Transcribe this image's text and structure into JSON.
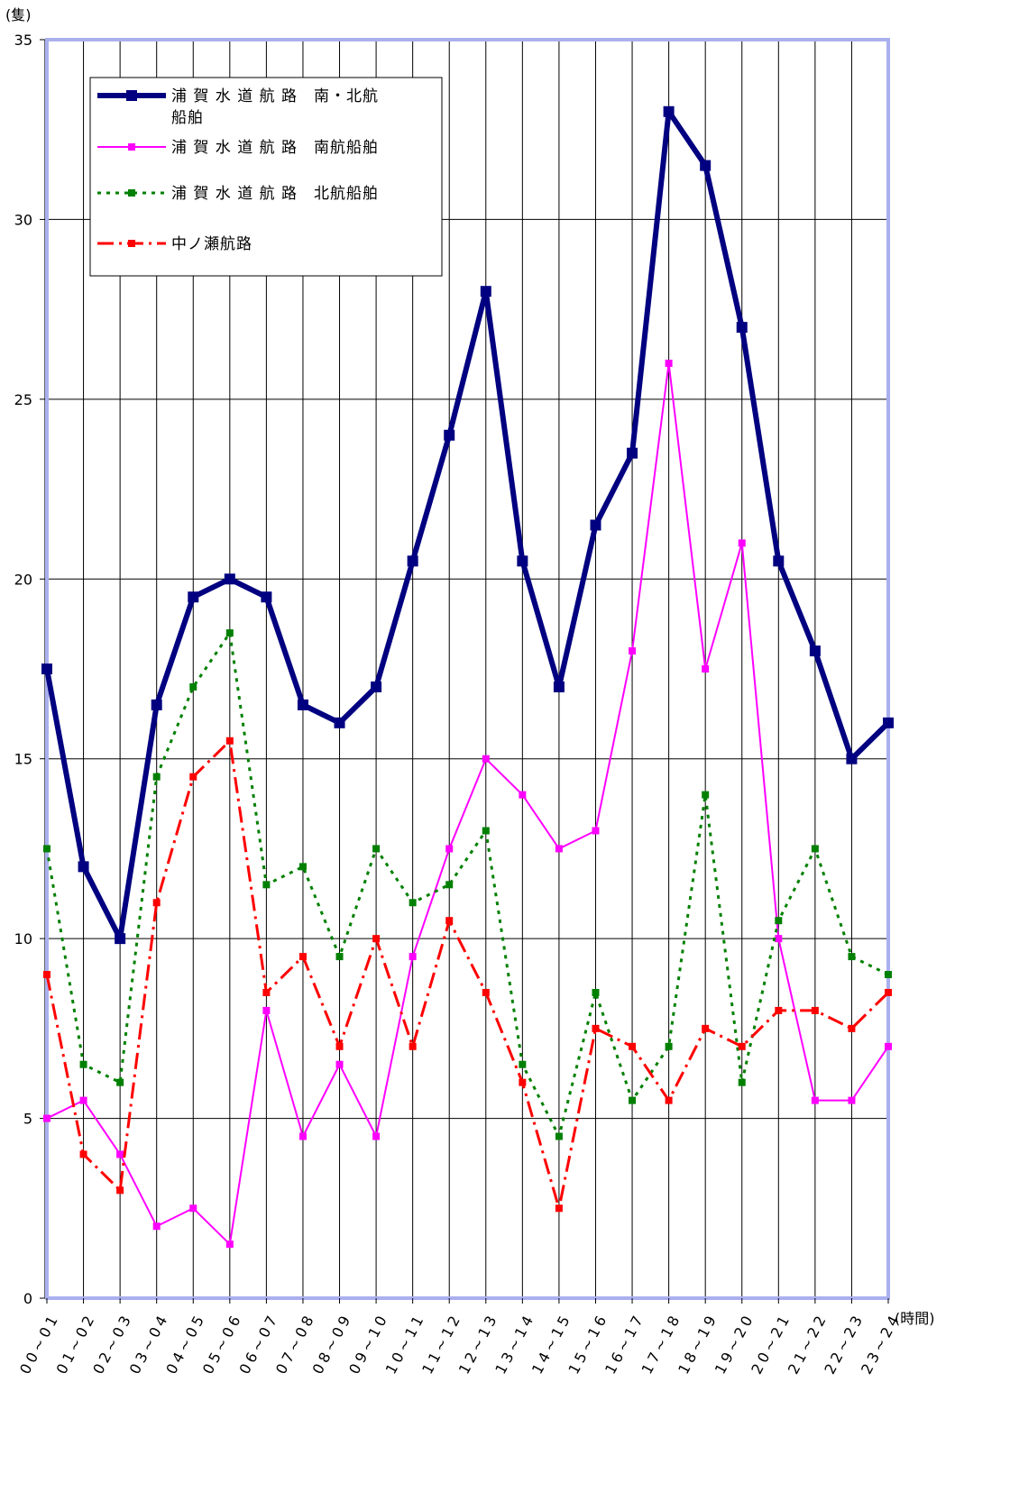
{
  "chart_data": {
    "type": "line",
    "ylabel": "(隻)",
    "xlabel": "(時間)",
    "ylim": [
      0,
      35
    ],
    "yticks": [
      "0",
      "5",
      "10",
      "15",
      "20",
      "25",
      "30",
      "35"
    ],
    "categories": [
      "00~01",
      "01~02",
      "02~03",
      "03~04",
      "04~05",
      "05~06",
      "06~07",
      "07~08",
      "08~09",
      "09~10",
      "10~11",
      "11~12",
      "12~13",
      "13~14",
      "14~15",
      "15~16",
      "16~17",
      "17~18",
      "18~19",
      "19~20",
      "20~21",
      "21~22",
      "22~23",
      "23~24"
    ],
    "grid": true,
    "legend_position": "top-left",
    "series": [
      {
        "name": "浦 賀 水 道 航 路　南・北航船舶",
        "color": "#000080",
        "style": "solid-thick",
        "values": [
          17.5,
          12,
          10,
          16.5,
          19.5,
          20,
          19.5,
          16.5,
          16,
          17,
          20.5,
          24,
          28,
          20.5,
          17,
          21.5,
          23.5,
          33,
          31.5,
          27,
          20.5,
          18,
          15,
          16
        ]
      },
      {
        "name": "浦 賀 水 道 航 路　南航船舶",
        "color": "#ff00ff",
        "style": "solid-thin",
        "values": [
          5,
          5.5,
          4,
          2,
          2.5,
          1.5,
          8,
          4.5,
          6.5,
          4.5,
          9.5,
          12.5,
          15,
          14,
          12.5,
          13,
          18,
          26,
          17.5,
          21,
          10,
          5.5,
          5.5,
          7
        ]
      },
      {
        "name": "浦 賀 水 道 航 路　北航船舶",
        "color": "#008000",
        "style": "dotted",
        "values": [
          12.5,
          6.5,
          6,
          14.5,
          17,
          18.5,
          11.5,
          12,
          9.5,
          12.5,
          11,
          11.5,
          13,
          6.5,
          4.5,
          8.5,
          5.5,
          7,
          14,
          6,
          10.5,
          12.5,
          9.5,
          9
        ]
      },
      {
        "name": "中ノ瀬航路",
        "color": "#ff0000",
        "style": "dashdot",
        "values": [
          9,
          4,
          3,
          11,
          14.5,
          15.5,
          8.5,
          9.5,
          7,
          10,
          7,
          10.5,
          8.5,
          6,
          2.5,
          7.5,
          7,
          5.5,
          7.5,
          7,
          8,
          8,
          7.5,
          8.5
        ]
      }
    ]
  }
}
